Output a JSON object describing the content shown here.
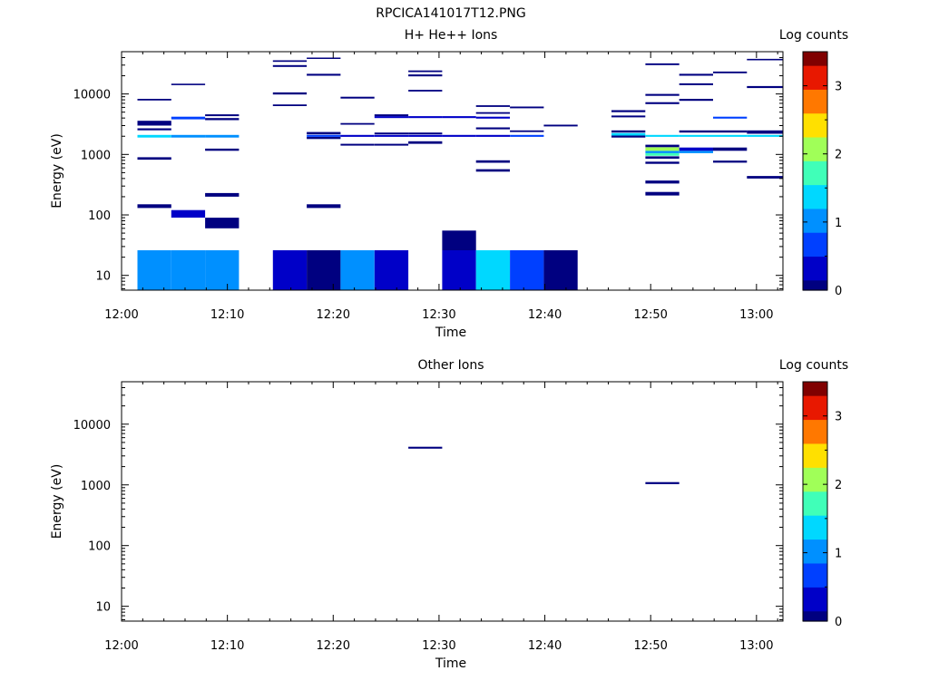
{
  "page_title": "RPCICA141017T12.PNG",
  "colormap": [
    "#000080",
    "#0000c8",
    "#0040ff",
    "#0090ff",
    "#00d8ff",
    "#40ffb8",
    "#a0ff58",
    "#ffe000",
    "#ff7800",
    "#e81800",
    "#800000"
  ],
  "chart_data": [
    {
      "type": "heatmap",
      "title": "H+ He++ Ions",
      "xlabel": "Time",
      "ylabel": "Energy (eV)",
      "x_ticks": [
        "12:00",
        "12:10",
        "12:20",
        "12:30",
        "12:40",
        "12:50",
        "13:00"
      ],
      "xlim_minutes": [
        0,
        62.5
      ],
      "y_scale": "log",
      "y_ticks": [
        "10",
        "100",
        "1000",
        "10000"
      ],
      "ylim": [
        5.7,
        50000
      ],
      "colorbar": {
        "label": "Log counts",
        "ticks": [
          "0",
          "1",
          "2",
          "3"
        ],
        "range": [
          0,
          3.5
        ]
      },
      "cells": [
        {
          "t0": 1.5,
          "t1": 4.7,
          "e0": 5.7,
          "e1": 26,
          "v": 0.9
        },
        {
          "t0": 4.7,
          "t1": 7.9,
          "e0": 5.7,
          "e1": 26,
          "v": 1.1
        },
        {
          "t0": 7.9,
          "t1": 11.1,
          "e0": 5.7,
          "e1": 26,
          "v": 0.9
        },
        {
          "t0": 14.3,
          "t1": 17.5,
          "e0": 5.7,
          "e1": 26,
          "v": 0.3
        },
        {
          "t0": 17.5,
          "t1": 20.7,
          "e0": 5.7,
          "e1": 26,
          "v": 0.05
        },
        {
          "t0": 20.7,
          "t1": 23.9,
          "e0": 5.7,
          "e1": 26,
          "v": 0.9
        },
        {
          "t0": 23.9,
          "t1": 27.1,
          "e0": 5.7,
          "e1": 26,
          "v": 0.3
        },
        {
          "t0": 30.3,
          "t1": 33.5,
          "e0": 5.7,
          "e1": 26,
          "v": 0.3
        },
        {
          "t0": 30.3,
          "t1": 33.5,
          "e0": 26,
          "e1": 55,
          "v": 0.1
        },
        {
          "t0": 33.5,
          "t1": 36.7,
          "e0": 5.7,
          "e1": 26,
          "v": 1.3
        },
        {
          "t0": 36.7,
          "t1": 39.9,
          "e0": 5.7,
          "e1": 26,
          "v": 0.6
        },
        {
          "t0": 39.9,
          "t1": 43.1,
          "e0": 5.7,
          "e1": 26,
          "v": 0.05
        },
        {
          "t0": 1.5,
          "t1": 4.7,
          "e0": 130,
          "e1": 150,
          "v": 0.1
        },
        {
          "t0": 4.7,
          "t1": 7.9,
          "e0": 90,
          "e1": 120,
          "v": 0.35
        },
        {
          "t0": 7.9,
          "t1": 11.1,
          "e0": 60,
          "e1": 90,
          "v": 0.1
        },
        {
          "t0": 7.9,
          "t1": 11.1,
          "e0": 200,
          "e1": 230,
          "v": 0.1
        },
        {
          "t0": 17.5,
          "t1": 20.7,
          "e0": 130,
          "e1": 150,
          "v": 0.1
        },
        {
          "t0": 1.5,
          "t1": 4.7,
          "e0": 820,
          "e1": 900,
          "v": 0.1
        },
        {
          "t0": 7.9,
          "t1": 11.1,
          "e0": 1150,
          "e1": 1250,
          "v": 0.1
        },
        {
          "t0": 1.5,
          "t1": 4.7,
          "e0": 1900,
          "e1": 2100,
          "v": 1.3
        },
        {
          "t0": 4.7,
          "t1": 7.9,
          "e0": 1900,
          "e1": 2100,
          "v": 1.2
        },
        {
          "t0": 7.9,
          "t1": 11.1,
          "e0": 1900,
          "e1": 2100,
          "v": 0.9
        },
        {
          "t0": 1.5,
          "t1": 4.7,
          "e0": 2500,
          "e1": 2700,
          "v": 0.1
        },
        {
          "t0": 1.5,
          "t1": 4.7,
          "e0": 3000,
          "e1": 3600,
          "v": 0.1
        },
        {
          "t0": 4.7,
          "t1": 7.9,
          "e0": 3800,
          "e1": 4200,
          "v": 0.6
        },
        {
          "t0": 7.9,
          "t1": 11.1,
          "e0": 3700,
          "e1": 4000,
          "v": 0.1
        },
        {
          "t0": 7.9,
          "t1": 11.1,
          "e0": 4300,
          "e1": 4600,
          "v": 0.1
        },
        {
          "t0": 1.5,
          "t1": 4.7,
          "e0": 7800,
          "e1": 8300,
          "v": 0.1
        },
        {
          "t0": 4.7,
          "t1": 7.9,
          "e0": 14000,
          "e1": 14800,
          "v": 0.1
        },
        {
          "t0": 14.3,
          "t1": 17.5,
          "e0": 6300,
          "e1": 6700,
          "v": 0.1
        },
        {
          "t0": 14.3,
          "t1": 17.5,
          "e0": 9800,
          "e1": 10600,
          "v": 0.1
        },
        {
          "t0": 14.3,
          "t1": 17.5,
          "e0": 28000,
          "e1": 30000,
          "v": 0.1
        },
        {
          "t0": 14.3,
          "t1": 17.5,
          "e0": 34000,
          "e1": 36000,
          "v": 0.1
        },
        {
          "t0": 17.5,
          "t1": 20.7,
          "e0": 1800,
          "e1": 1950,
          "v": 0.1
        },
        {
          "t0": 17.5,
          "t1": 20.7,
          "e0": 1950,
          "e1": 2100,
          "v": 0.6
        },
        {
          "t0": 17.5,
          "t1": 20.7,
          "e0": 2150,
          "e1": 2350,
          "v": 0.1
        },
        {
          "t0": 17.5,
          "t1": 20.7,
          "e0": 20000,
          "e1": 21500,
          "v": 0.1
        },
        {
          "t0": 17.5,
          "t1": 20.7,
          "e0": 38000,
          "e1": 40000,
          "v": 0.1
        },
        {
          "t0": 20.7,
          "t1": 23.9,
          "e0": 1400,
          "e1": 1500,
          "v": 0.1
        },
        {
          "t0": 20.7,
          "t1": 23.9,
          "e0": 1950,
          "e1": 2100,
          "v": 0.3
        },
        {
          "t0": 20.7,
          "t1": 23.9,
          "e0": 3100,
          "e1": 3300,
          "v": 0.1
        },
        {
          "t0": 20.7,
          "t1": 23.9,
          "e0": 8400,
          "e1": 9000,
          "v": 0.1
        },
        {
          "t0": 23.9,
          "t1": 27.1,
          "e0": 1400,
          "e1": 1500,
          "v": 0.1
        },
        {
          "t0": 23.9,
          "t1": 27.1,
          "e0": 1950,
          "e1": 2100,
          "v": 0.3
        },
        {
          "t0": 23.9,
          "t1": 27.1,
          "e0": 2150,
          "e1": 2300,
          "v": 0.1
        },
        {
          "t0": 23.9,
          "t1": 27.1,
          "e0": 4000,
          "e1": 4300,
          "v": 0.3
        },
        {
          "t0": 23.9,
          "t1": 27.1,
          "e0": 4300,
          "e1": 4600,
          "v": 0.1
        },
        {
          "t0": 27.1,
          "t1": 30.3,
          "e0": 1500,
          "e1": 1650,
          "v": 0.1
        },
        {
          "t0": 27.1,
          "t1": 30.3,
          "e0": 1950,
          "e1": 2100,
          "v": 0.3
        },
        {
          "t0": 27.1,
          "t1": 30.3,
          "e0": 2150,
          "e1": 2300,
          "v": 0.1
        },
        {
          "t0": 27.1,
          "t1": 30.3,
          "e0": 4000,
          "e1": 4300,
          "v": 0.3
        },
        {
          "t0": 27.1,
          "t1": 30.3,
          "e0": 11000,
          "e1": 11700,
          "v": 0.1
        },
        {
          "t0": 27.1,
          "t1": 30.3,
          "e0": 19500,
          "e1": 21000,
          "v": 0.1
        },
        {
          "t0": 27.1,
          "t1": 30.3,
          "e0": 23000,
          "e1": 24500,
          "v": 0.1
        },
        {
          "t0": 30.3,
          "t1": 33.5,
          "e0": 1950,
          "e1": 2100,
          "v": 0.3
        },
        {
          "t0": 30.3,
          "t1": 33.5,
          "e0": 4000,
          "e1": 4300,
          "v": 0.3
        },
        {
          "t0": 33.5,
          "t1": 36.7,
          "e0": 520,
          "e1": 570,
          "v": 0.1
        },
        {
          "t0": 33.5,
          "t1": 36.7,
          "e0": 730,
          "e1": 800,
          "v": 0.1
        },
        {
          "t0": 33.5,
          "t1": 36.7,
          "e0": 1950,
          "e1": 2100,
          "v": 0.3
        },
        {
          "t0": 33.5,
          "t1": 36.7,
          "e0": 2600,
          "e1": 2800,
          "v": 0.1
        },
        {
          "t0": 33.5,
          "t1": 36.7,
          "e0": 3900,
          "e1": 4200,
          "v": 0.3
        },
        {
          "t0": 33.5,
          "t1": 36.7,
          "e0": 4700,
          "e1": 5000,
          "v": 0.1
        },
        {
          "t0": 33.5,
          "t1": 36.7,
          "e0": 6100,
          "e1": 6500,
          "v": 0.1
        },
        {
          "t0": 36.7,
          "t1": 39.9,
          "e0": 1950,
          "e1": 2100,
          "v": 0.8
        },
        {
          "t0": 36.7,
          "t1": 39.9,
          "e0": 2350,
          "e1": 2500,
          "v": 0.1
        },
        {
          "t0": 36.7,
          "t1": 39.9,
          "e0": 5800,
          "e1": 6200,
          "v": 0.1
        },
        {
          "t0": 39.9,
          "t1": 43.1,
          "e0": 2900,
          "e1": 3100,
          "v": 0.1
        },
        {
          "t0": 46.3,
          "t1": 49.5,
          "e0": 1900,
          "e1": 2050,
          "v": 0.1
        },
        {
          "t0": 46.3,
          "t1": 49.5,
          "e0": 2050,
          "e1": 2250,
          "v": 1.4
        },
        {
          "t0": 46.3,
          "t1": 49.5,
          "e0": 2300,
          "e1": 2500,
          "v": 0.1
        },
        {
          "t0": 46.3,
          "t1": 49.5,
          "e0": 4100,
          "e1": 4400,
          "v": 0.1
        },
        {
          "t0": 46.3,
          "t1": 49.5,
          "e0": 5000,
          "e1": 5400,
          "v": 0.1
        },
        {
          "t0": 49.5,
          "t1": 52.7,
          "e0": 210,
          "e1": 240,
          "v": 0.1
        },
        {
          "t0": 49.5,
          "t1": 52.7,
          "e0": 330,
          "e1": 370,
          "v": 0.1
        },
        {
          "t0": 49.5,
          "t1": 52.7,
          "e0": 700,
          "e1": 760,
          "v": 0.1
        },
        {
          "t0": 49.5,
          "t1": 52.7,
          "e0": 850,
          "e1": 930,
          "v": 0.1
        },
        {
          "t0": 49.5,
          "t1": 52.7,
          "e0": 950,
          "e1": 1050,
          "v": 1.8
        },
        {
          "t0": 49.5,
          "t1": 52.7,
          "e0": 1050,
          "e1": 1150,
          "v": 1.2
        },
        {
          "t0": 49.5,
          "t1": 52.7,
          "e0": 1150,
          "e1": 1320,
          "v": 2.0
        },
        {
          "t0": 49.5,
          "t1": 52.7,
          "e0": 1320,
          "e1": 1450,
          "v": 0.1
        },
        {
          "t0": 49.5,
          "t1": 52.7,
          "e0": 1950,
          "e1": 2100,
          "v": 1.4
        },
        {
          "t0": 49.5,
          "t1": 52.7,
          "e0": 6800,
          "e1": 7300,
          "v": 0.1
        },
        {
          "t0": 49.5,
          "t1": 52.7,
          "e0": 9300,
          "e1": 10000,
          "v": 0.1
        },
        {
          "t0": 49.5,
          "t1": 52.7,
          "e0": 30000,
          "e1": 32000,
          "v": 0.1
        },
        {
          "t0": 52.7,
          "t1": 55.9,
          "e0": 1050,
          "e1": 1150,
          "v": 1.2
        },
        {
          "t0": 52.7,
          "t1": 55.9,
          "e0": 1150,
          "e1": 1300,
          "v": 0.5
        },
        {
          "t0": 52.7,
          "t1": 55.9,
          "e0": 1950,
          "e1": 2100,
          "v": 1.4
        },
        {
          "t0": 52.7,
          "t1": 55.9,
          "e0": 2300,
          "e1": 2500,
          "v": 0.1
        },
        {
          "t0": 52.7,
          "t1": 55.9,
          "e0": 7700,
          "e1": 8300,
          "v": 0.1
        },
        {
          "t0": 52.7,
          "t1": 55.9,
          "e0": 14000,
          "e1": 15000,
          "v": 0.1
        },
        {
          "t0": 52.7,
          "t1": 55.9,
          "e0": 20000,
          "e1": 21500,
          "v": 0.1
        },
        {
          "t0": 55.9,
          "t1": 59.1,
          "e0": 730,
          "e1": 790,
          "v": 0.1
        },
        {
          "t0": 55.9,
          "t1": 59.1,
          "e0": 1150,
          "e1": 1300,
          "v": 0.1
        },
        {
          "t0": 55.9,
          "t1": 59.1,
          "e0": 1950,
          "e1": 2100,
          "v": 1.4
        },
        {
          "t0": 55.9,
          "t1": 59.1,
          "e0": 2300,
          "e1": 2500,
          "v": 0.1
        },
        {
          "t0": 55.9,
          "t1": 59.1,
          "e0": 3900,
          "e1": 4200,
          "v": 0.6
        },
        {
          "t0": 55.9,
          "t1": 59.1,
          "e0": 22000,
          "e1": 23500,
          "v": 0.1
        },
        {
          "t0": 59.1,
          "t1": 62.5,
          "e0": 400,
          "e1": 440,
          "v": 0.1
        },
        {
          "t0": 59.1,
          "t1": 62.5,
          "e0": 1950,
          "e1": 2100,
          "v": 1.4
        },
        {
          "t0": 59.1,
          "t1": 62.5,
          "e0": 2200,
          "e1": 2500,
          "v": 0.1
        },
        {
          "t0": 59.1,
          "t1": 62.5,
          "e0": 12500,
          "e1": 13500,
          "v": 0.1
        },
        {
          "t0": 59.1,
          "t1": 62.5,
          "e0": 36000,
          "e1": 38000,
          "v": 0.1
        }
      ]
    },
    {
      "type": "heatmap",
      "title": "Other Ions",
      "xlabel": "Time",
      "ylabel": "Energy (eV)",
      "x_ticks": [
        "12:00",
        "12:10",
        "12:20",
        "12:30",
        "12:40",
        "12:50",
        "13:00"
      ],
      "xlim_minutes": [
        0,
        62.5
      ],
      "y_scale": "log",
      "y_ticks": [
        "10",
        "100",
        "1000",
        "10000"
      ],
      "ylim": [
        5.7,
        50000
      ],
      "colorbar": {
        "label": "Log counts",
        "ticks": [
          "0",
          "1",
          "2",
          "3"
        ],
        "range": [
          0,
          3.5
        ]
      },
      "cells": [
        {
          "t0": 27.1,
          "t1": 30.3,
          "e0": 3950,
          "e1": 4250,
          "v": 0.1
        },
        {
          "t0": 49.5,
          "t1": 52.7,
          "e0": 1030,
          "e1": 1110,
          "v": 0.1
        }
      ]
    }
  ]
}
